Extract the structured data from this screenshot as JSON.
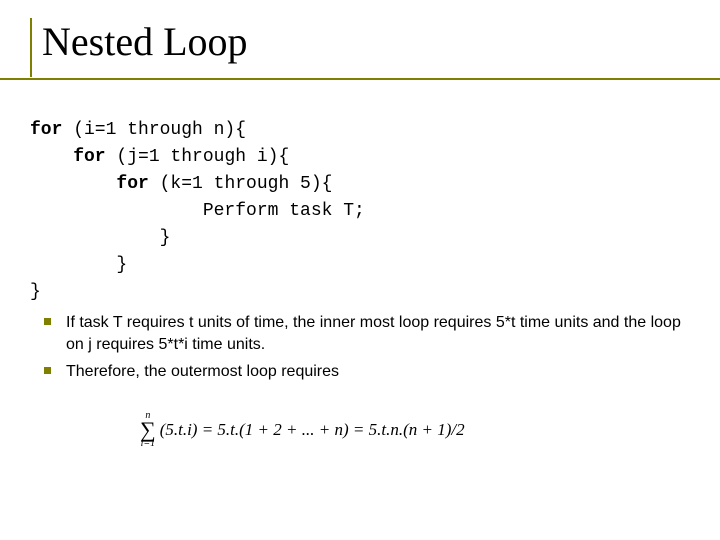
{
  "slide": {
    "title": "Nested Loop",
    "title_color": "#000000",
    "title_fontsize": 40,
    "accent_color": "#808000",
    "background_color": "#ffffff"
  },
  "code": {
    "font_family": "Courier New",
    "font_size": 18,
    "color": "#000000",
    "lines": [
      {
        "keyword": "for",
        "rest": " (i=1 through n){",
        "indent": 0
      },
      {
        "keyword": "for",
        "rest": " (j=1 through i){",
        "indent": 1
      },
      {
        "keyword": "for",
        "rest": " (k=1 through 5){",
        "indent": 2
      },
      {
        "keyword": "",
        "rest": "Perform task T;",
        "indent": 4
      },
      {
        "keyword": "",
        "rest": "}",
        "indent": 3
      },
      {
        "keyword": "",
        "rest": "}",
        "indent": 2
      },
      {
        "keyword": "",
        "rest": "}",
        "indent": 0
      }
    ]
  },
  "bullets": {
    "font_size": 16,
    "color": "#000000",
    "marker_color": "#808000",
    "items": [
      "If task T requires t units of time, the inner most loop requires 5*t time units and the loop on j requires 5*t*i time units.",
      "Therefore, the outermost loop requires"
    ]
  },
  "formula": {
    "sigma_upper": "n",
    "sigma_lower": "i=1",
    "expression": "(5.t.i) = 5.t.(1 + 2 + ... + n) = 5.t.n.(n + 1)/2",
    "font_family": "Times New Roman",
    "font_size": 17,
    "color": "#000000"
  }
}
